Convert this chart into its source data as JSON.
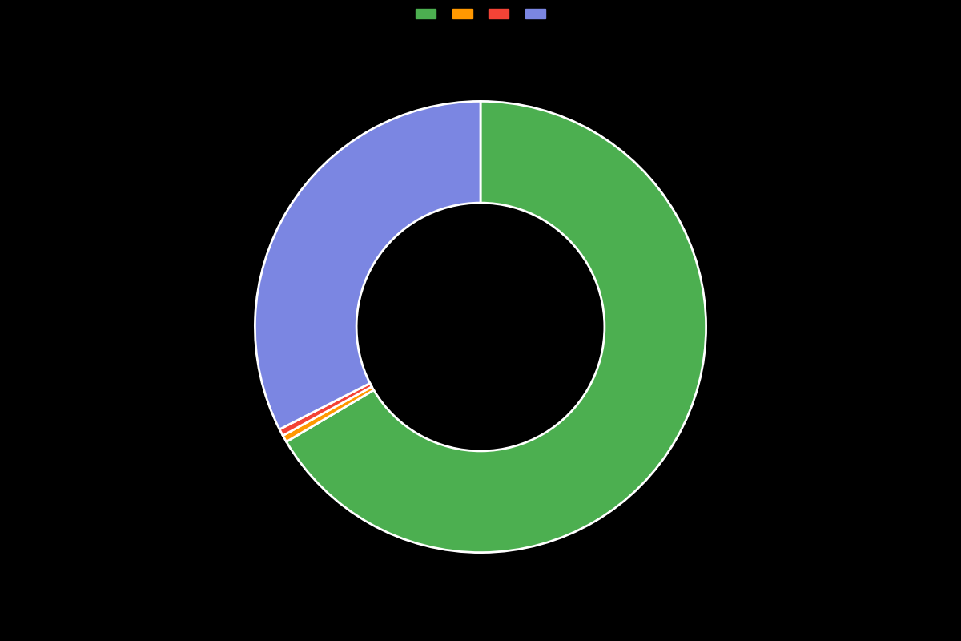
{
  "slices": [
    {
      "label": "",
      "value": 66.5,
      "color": "#4CAF50"
    },
    {
      "label": "",
      "value": 0.5,
      "color": "#FF9800"
    },
    {
      "label": "",
      "value": 0.5,
      "color": "#F44336"
    },
    {
      "label": "",
      "value": 32.5,
      "color": "#7B86E2"
    }
  ],
  "legend_colors": [
    "#4CAF50",
    "#FF9800",
    "#F44336",
    "#7B86E2"
  ],
  "background_color": "#000000",
  "wedge_edge_color": "#ffffff",
  "wedge_linewidth": 2,
  "donut_width": 0.45,
  "figsize": [
    12,
    8
  ],
  "dpi": 100,
  "startangle": 90
}
